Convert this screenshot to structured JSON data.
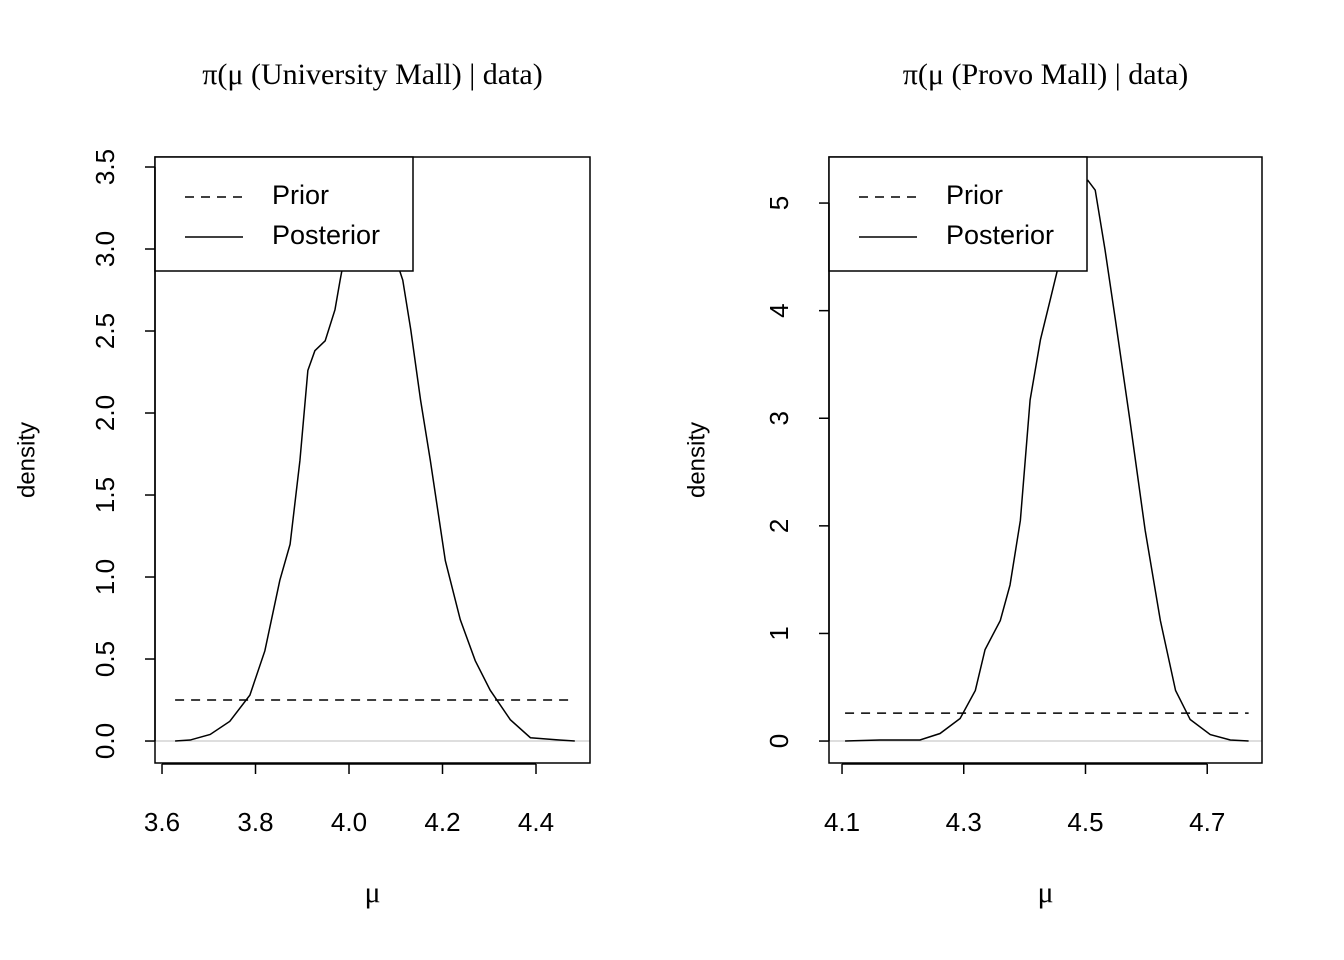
{
  "chart_data": [
    {
      "type": "line",
      "title": "π(μ (University Mall) | data)",
      "x_label": "μ",
      "y_label": "density",
      "xlim": [
        3.585,
        4.5155
      ],
      "ylim": [
        -0.134,
        3.561
      ],
      "xticks": [
        {
          "value": 3.6,
          "label": "3.6"
        },
        {
          "value": 3.8,
          "label": "3.8"
        },
        {
          "value": 4.0,
          "label": "4.0"
        },
        {
          "value": 4.2,
          "label": "4.2"
        },
        {
          "value": 4.4,
          "label": "4.4"
        }
      ],
      "yticks": [
        {
          "value": 0,
          "label": "0.0"
        },
        0.5,
        {
          "value": 1,
          "label": "1.0"
        },
        1.5,
        {
          "value": 2,
          "label": "2.0"
        },
        2.5,
        {
          "value": 3,
          "label": "3.0"
        },
        3.5
      ],
      "zero_line": true,
      "legend": "top-left",
      "series": [
        {
          "name": "Prior",
          "color": "#000000",
          "linestyle": "dashed",
          "x": [
            3.628,
            4.483
          ],
          "values": [
            0.25,
            0.25
          ]
        },
        {
          "name": "Posterior",
          "color": "#000000",
          "linestyle": "solid",
          "x": [
            3.628,
            3.66,
            3.703,
            3.745,
            3.788,
            3.82,
            3.852,
            3.874,
            3.895,
            3.912,
            3.927,
            3.949,
            3.97,
            3.981,
            4.0,
            4.03,
            4.07,
            4.115,
            4.132,
            4.153,
            4.174,
            4.206,
            4.238,
            4.27,
            4.302,
            4.345,
            4.388,
            4.45,
            4.483
          ],
          "values": [
            0,
            0.006,
            0.04,
            0.12,
            0.28,
            0.55,
            0.98,
            1.2,
            1.71,
            2.26,
            2.38,
            2.44,
            2.63,
            2.81,
            3.1,
            3.3,
            3.2,
            2.81,
            2.51,
            2.08,
            1.71,
            1.1,
            0.74,
            0.49,
            0.31,
            0.13,
            0.02,
            0.006,
            0
          ]
        }
      ]
    },
    {
      "type": "line",
      "title": "π(μ (Provo Mall) | data)",
      "x_label": "μ",
      "y_label": "density",
      "xlim": [
        4.0786,
        4.79
      ],
      "ylim": [
        -0.204,
        5.428
      ],
      "xticks": [
        4.1,
        4.3,
        4.5,
        4.7
      ],
      "yticks": [
        0,
        1,
        2,
        3,
        4,
        5
      ],
      "zero_line": true,
      "legend": "top-left",
      "series": [
        {
          "name": "Prior",
          "color": "#000000",
          "linestyle": "dashed",
          "x": [
            4.105,
            4.768
          ],
          "values": [
            0.26,
            0.26
          ]
        },
        {
          "name": "Posterior",
          "color": "#000000",
          "linestyle": "solid",
          "x": [
            4.105,
            4.162,
            4.228,
            4.261,
            4.294,
            4.319,
            4.335,
            4.36,
            4.376,
            4.393,
            4.409,
            4.426,
            4.442,
            4.454,
            4.475,
            4.491,
            4.504,
            4.516,
            4.532,
            4.549,
            4.573,
            4.598,
            4.623,
            4.648,
            4.672,
            4.705,
            4.738,
            4.768
          ],
          "values": [
            0,
            0.01,
            0.01,
            0.07,
            0.21,
            0.47,
            0.85,
            1.12,
            1.45,
            2.05,
            3.17,
            3.73,
            4.1,
            4.38,
            4.84,
            5.14,
            5.21,
            5.12,
            4.57,
            3.92,
            2.98,
            1.96,
            1.12,
            0.47,
            0.2,
            0.06,
            0.01,
            0
          ]
        }
      ]
    }
  ]
}
